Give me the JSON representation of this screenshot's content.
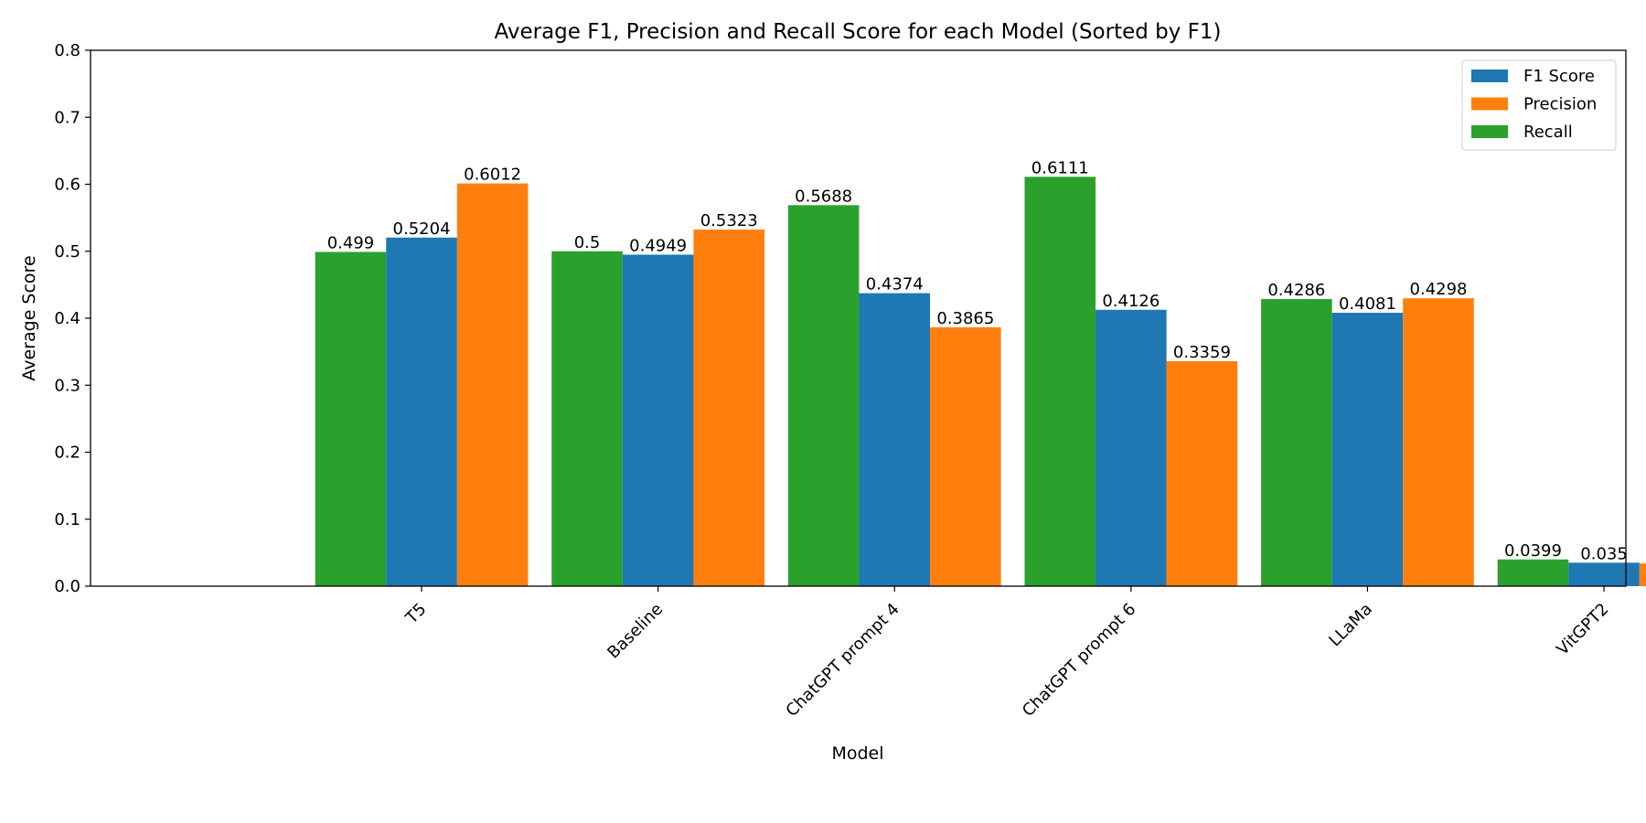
{
  "chart_data": {
    "type": "bar",
    "title": "Average F1, Precision and Recall Score for each Model (Sorted by F1)",
    "xlabel": "Model",
    "ylabel": "Average Score",
    "categories": [
      "T5",
      "Baseline",
      "ChatGPT prompt 4",
      "ChatGPT prompt 6",
      "LLaMa",
      "VitGPT2"
    ],
    "series": [
      {
        "name": "Recall",
        "color": "#2ca02c",
        "values": [
          0.499,
          0.5,
          0.5688,
          0.6111,
          0.4286,
          0.0399
        ]
      },
      {
        "name": "F1 Score",
        "color": "#1f77b4",
        "values": [
          0.5204,
          0.4949,
          0.4374,
          0.4126,
          0.4081,
          0.035
        ]
      },
      {
        "name": "Precision",
        "color": "#ff7f0e",
        "values": [
          0.6012,
          0.5323,
          0.3865,
          0.3359,
          0.4298,
          0.0339
        ]
      }
    ],
    "legend_order": [
      "F1 Score",
      "Precision",
      "Recall"
    ],
    "ylim": [
      0,
      0.8
    ],
    "yticks": [
      "0.0",
      "0.1",
      "0.2",
      "0.3",
      "0.4",
      "0.5",
      "0.6",
      "0.7",
      "0.8"
    ],
    "grid": false,
    "legend_position": "top-right",
    "xtick_rotation": "45 degrees"
  }
}
